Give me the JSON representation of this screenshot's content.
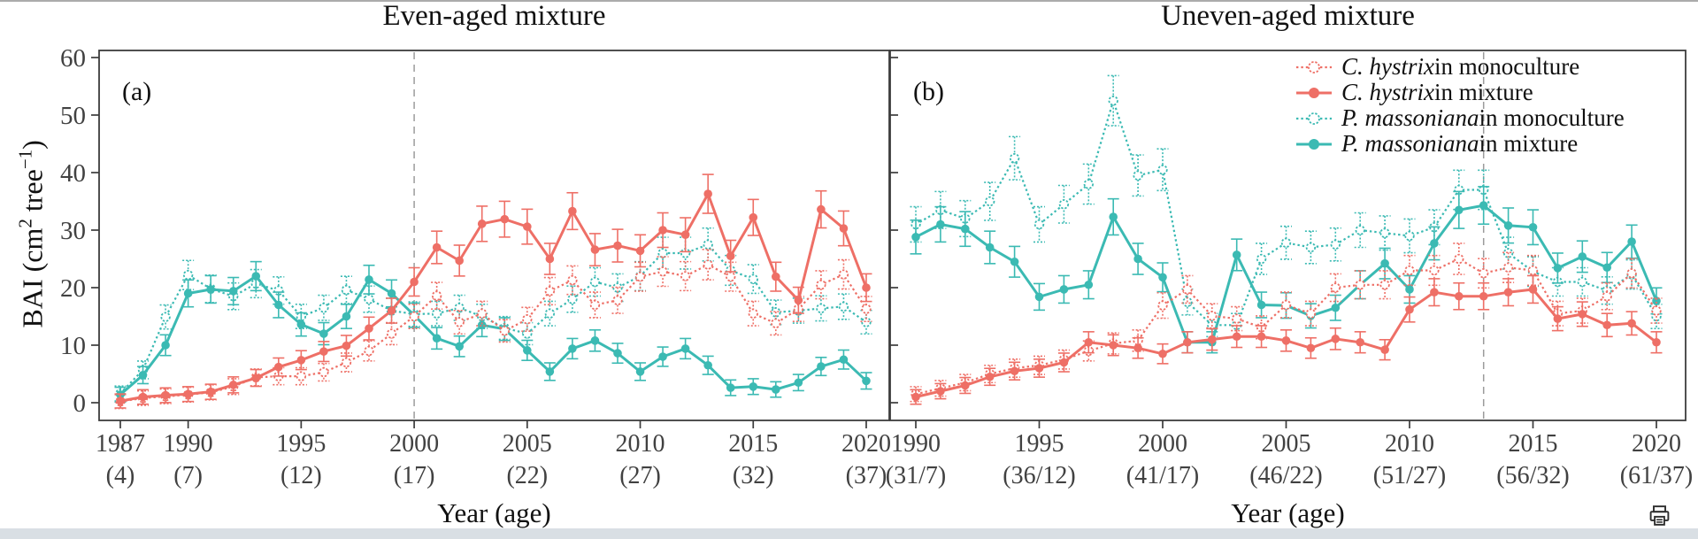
{
  "page": {
    "background": "#ffffff",
    "top_border_color": "#ababab",
    "bottom_band_color": "#d9dfe4"
  },
  "colors": {
    "red": "#ee6f66",
    "teal": "#3bbab3",
    "axis": "#3c3c3c",
    "tick_label": "#414141",
    "dashed_line": "#9b9b9b"
  },
  "y_axis_label": {
    "pre": "BAI (cm",
    "sup1": "2",
    "mid": " tree",
    "sup2": "−1",
    "post": ")"
  },
  "error_bar_estimate": {
    "base": 1.2,
    "per_unit": 0.06
  },
  "legend": {
    "position": "top-right-of-panel-b",
    "items": [
      {
        "species": "C. hystrix",
        "rest": " in monoculture",
        "color": "red",
        "style": "dotted",
        "marker": "open"
      },
      {
        "species": "C. hystrix",
        "rest": " in mixture",
        "color": "red",
        "style": "solid",
        "marker": "filled"
      },
      {
        "species": "P. massoniana",
        "rest": " in monoculture",
        "color": "teal",
        "style": "dotted",
        "marker": "open"
      },
      {
        "species": "P. massoniana",
        "rest": " in mixture",
        "color": "teal",
        "style": "solid",
        "marker": "filled"
      }
    ]
  },
  "chart_data": [
    {
      "panel": "a",
      "panel_label": "(a)",
      "title": "Even-aged mixture",
      "type": "line",
      "xlabel": "Year (age)",
      "ylabel": "BAI (cm2 tree-1)",
      "ylim": [
        0,
        60
      ],
      "yticks": [
        0,
        10,
        20,
        30,
        40,
        50,
        60
      ],
      "grid": false,
      "dashed_line_year": 2000,
      "x_ticks": [
        {
          "year": "1987",
          "age": "(4)"
        },
        {
          "year": "1990",
          "age": "(7)"
        },
        {
          "year": "1995",
          "age": "(12)"
        },
        {
          "year": "2000",
          "age": "(17)"
        },
        {
          "year": "2005",
          "age": "(22)"
        },
        {
          "year": "2010",
          "age": "(27)"
        },
        {
          "year": "2015",
          "age": "(32)"
        },
        {
          "year": "2020",
          "age": "(37)"
        }
      ],
      "years": [
        1987,
        1988,
        1989,
        1990,
        1991,
        1992,
        1993,
        1994,
        1995,
        1996,
        1997,
        1998,
        1999,
        2000,
        2001,
        2002,
        2003,
        2004,
        2005,
        2006,
        2007,
        2008,
        2009,
        2010,
        2011,
        2012,
        2013,
        2014,
        2015,
        2016,
        2017,
        2018,
        2019,
        2020
      ],
      "series": [
        {
          "name": "C. hystrix in monoculture",
          "color": "red",
          "style": "dotted",
          "marker": "open",
          "values": [
            0.2,
            0.8,
            1.1,
            1.4,
            1.8,
            2.8,
            4.4,
            4.6,
            4.6,
            5.3,
            7.0,
            9.0,
            12.0,
            15.0,
            18.6,
            14.0,
            15.5,
            12.5,
            14.5,
            19.4,
            21.3,
            17.0,
            17.8,
            21.9,
            22.8,
            22.0,
            24.0,
            21.9,
            15.5,
            13.8,
            16.3,
            20.5,
            22.3,
            16.3
          ]
        },
        {
          "name": "C. hystrix in mixture",
          "color": "red",
          "style": "solid",
          "marker": "filled",
          "values": [
            0.3,
            1.0,
            1.3,
            1.5,
            1.9,
            3.1,
            4.3,
            6.2,
            7.4,
            8.9,
            9.9,
            12.9,
            16.0,
            21.0,
            27.0,
            24.7,
            31.1,
            31.9,
            30.6,
            25.0,
            33.3,
            26.6,
            27.3,
            26.4,
            30.0,
            29.2,
            36.3,
            25.5,
            32.2,
            21.9,
            17.8,
            33.6,
            30.3,
            20.0
          ]
        },
        {
          "name": "P. massoniana in monoculture",
          "color": "teal",
          "style": "dotted",
          "marker": "open",
          "values": [
            1.6,
            5.7,
            14.9,
            22.2,
            19.8,
            18.5,
            20.7,
            19.5,
            15.0,
            16.5,
            19.6,
            18.0,
            16.0,
            15.4,
            15.5,
            16.5,
            15.0,
            13.0,
            12.0,
            15.5,
            18.0,
            21.0,
            20.0,
            22.0,
            26.0,
            26.0,
            27.5,
            23.0,
            21.5,
            15.7,
            16.0,
            16.4,
            16.7,
            14.0
          ]
        },
        {
          "name": "P. massoniana in mixture",
          "color": "teal",
          "style": "solid",
          "marker": "filled",
          "values": [
            1.4,
            4.8,
            10.0,
            19.0,
            19.7,
            19.4,
            22.0,
            17.0,
            13.6,
            12.0,
            15.0,
            21.4,
            19.0,
            15.2,
            11.2,
            9.8,
            13.5,
            12.8,
            9.1,
            5.4,
            9.4,
            10.8,
            8.6,
            5.4,
            8.0,
            9.4,
            6.5,
            2.6,
            2.8,
            2.3,
            3.5,
            6.3,
            7.5,
            3.8
          ]
        }
      ]
    },
    {
      "panel": "b",
      "panel_label": "(b)",
      "title": "Uneven-aged mixture",
      "type": "line",
      "xlabel": "Year (age)",
      "ylabel": "BAI (cm2 tree-1)",
      "ylim": [
        0,
        60
      ],
      "yticks": [
        0,
        10,
        20,
        30,
        40,
        50,
        60
      ],
      "grid": false,
      "dashed_line_year": 2013,
      "x_ticks": [
        {
          "year": "1990",
          "age": "(31/7)"
        },
        {
          "year": "1995",
          "age": "(36/12)"
        },
        {
          "year": "2000",
          "age": "(41/17)"
        },
        {
          "year": "2005",
          "age": "(46/22)"
        },
        {
          "year": "2010",
          "age": "(51/27)"
        },
        {
          "year": "2015",
          "age": "(56/32)"
        },
        {
          "year": "2020",
          "age": "(61/37)"
        }
      ],
      "years": [
        1990,
        1991,
        1992,
        1993,
        1994,
        1995,
        1996,
        1997,
        1998,
        1999,
        2000,
        2001,
        2002,
        2003,
        2004,
        2005,
        2006,
        2007,
        2008,
        2009,
        2010,
        2011,
        2012,
        2013,
        2014,
        2015,
        2016,
        2017,
        2018,
        2019,
        2020
      ],
      "series": [
        {
          "name": "C. hystrix in monoculture",
          "color": "red",
          "style": "dotted",
          "marker": "open",
          "values": [
            1.5,
            2.5,
            3.5,
            5.0,
            6.0,
            6.5,
            7.5,
            9.0,
            10.3,
            10.8,
            16.9,
            19.7,
            15.1,
            14.6,
            13.1,
            17.0,
            15.5,
            20.0,
            20.5,
            20.5,
            23.0,
            23.0,
            25.0,
            22.5,
            23.5,
            23.0,
            15.5,
            16.0,
            18.5,
            22.5,
            16.0
          ]
        },
        {
          "name": "C. hystrix in mixture",
          "color": "red",
          "style": "solid",
          "marker": "filled",
          "values": [
            1.0,
            2.0,
            3.0,
            4.5,
            5.5,
            6.0,
            7.0,
            10.5,
            10.0,
            9.5,
            8.5,
            10.5,
            11.0,
            11.5,
            11.5,
            10.8,
            9.5,
            11.1,
            10.5,
            9.2,
            16.2,
            19.2,
            18.5,
            18.5,
            19.2,
            19.7,
            14.6,
            15.4,
            13.5,
            13.8,
            10.5
          ]
        },
        {
          "name": "P. massoniana in monoculture",
          "color": "teal",
          "style": "dotted",
          "marker": "open",
          "values": [
            31.0,
            33.5,
            32.0,
            35.0,
            42.5,
            31.0,
            34.5,
            38.0,
            52.5,
            39.5,
            40.5,
            17.5,
            13.5,
            13.5,
            25.0,
            27.8,
            27.0,
            27.5,
            30.0,
            29.5,
            29.0,
            30.5,
            37.0,
            37.0,
            26.0,
            22.8,
            21.0,
            21.0,
            19.5,
            22.3,
            15.0
          ]
        },
        {
          "name": "P. massoniana in mixture",
          "color": "teal",
          "style": "solid",
          "marker": "filled",
          "values": [
            28.8,
            31.0,
            30.2,
            27.0,
            24.5,
            18.4,
            19.7,
            20.5,
            32.3,
            25.0,
            21.8,
            10.5,
            10.5,
            25.7,
            17.0,
            16.9,
            15.1,
            16.5,
            20.5,
            24.2,
            19.7,
            27.7,
            33.5,
            34.3,
            30.8,
            30.5,
            23.4,
            25.4,
            23.5,
            28.0,
            17.7
          ]
        }
      ]
    }
  ]
}
